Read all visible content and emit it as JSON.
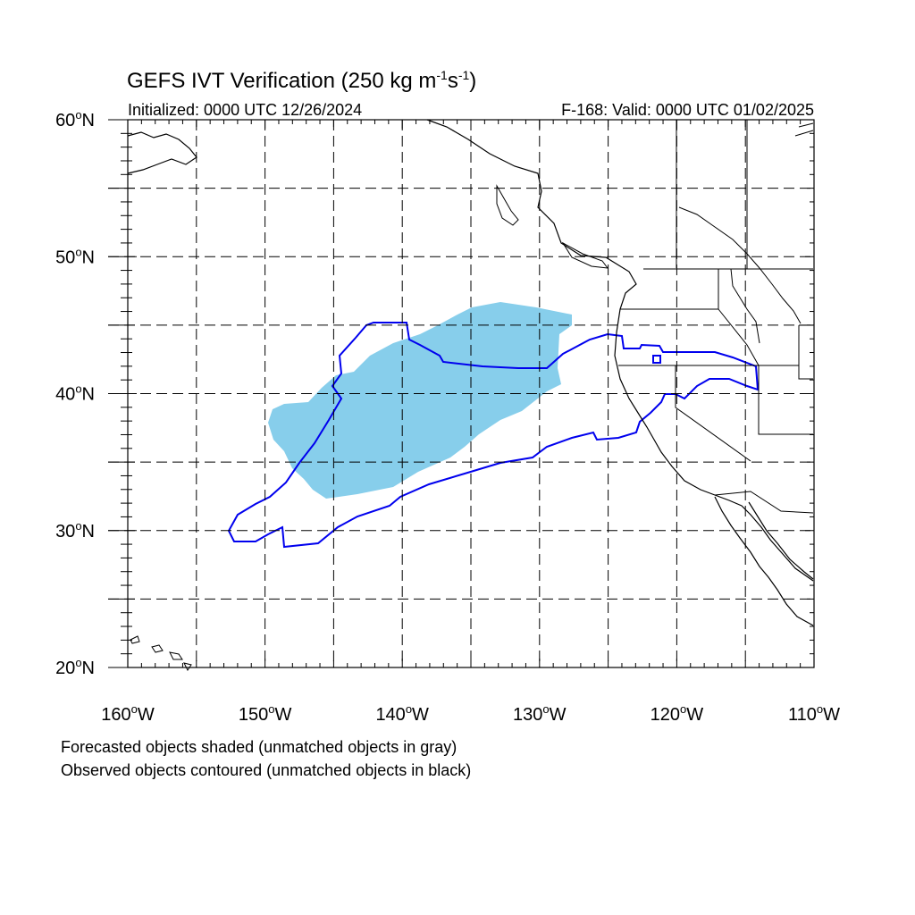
{
  "title": {
    "main": "GEFS IVT Verification (250 kg m",
    "exp1": "-1",
    "mid": "s",
    "exp2": "-1",
    "close": ")"
  },
  "initialized": "Initialized: 0000 UTC 12/26/2024",
  "valid": "F-168: Valid: 0000 UTC 01/02/2025",
  "lon_labels": [
    "160",
    "150",
    "140",
    "130",
    "120",
    "110"
  ],
  "lat_labels": [
    "20",
    "30",
    "40",
    "50",
    "60"
  ],
  "lon_suffix": "W",
  "lat_suffix": "N",
  "degree": "o",
  "notes": [
    "Forecasted objects shaded (unmatched objects in gray)",
    "Observed objects contoured (unmatched objects in black)"
  ],
  "colors": {
    "forecast_fill": "#87ceeb",
    "observed_contour": "#0000ee",
    "coastline": "#000000",
    "grid": "#000000"
  },
  "map": {
    "lon_range": [
      -160,
      -110
    ],
    "lat_range": [
      20,
      60
    ],
    "grid_lon": [
      -155,
      -150,
      -145,
      -140,
      -135,
      -130,
      -125,
      -120,
      -115
    ],
    "grid_lat": [
      25,
      30,
      35,
      40,
      45,
      50,
      55
    ]
  }
}
